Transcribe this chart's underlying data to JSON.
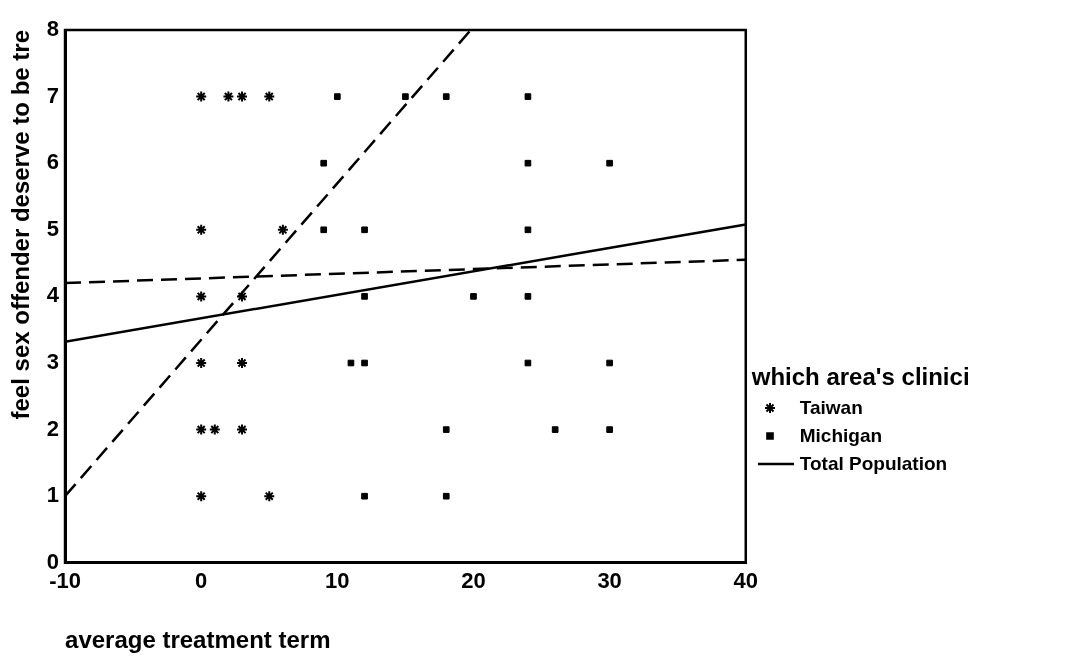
{
  "chart_data": {
    "type": "scatter",
    "xlabel": "average treatment term",
    "ylabel": "feel sex offender deserve to be tre",
    "legend_title": "which area's clinici",
    "xlim": [
      -10,
      40
    ],
    "xticks": [
      -10,
      0,
      10,
      20,
      30,
      40
    ],
    "ylim": [
      0,
      8
    ],
    "yticks": [
      0,
      1,
      2,
      3,
      4,
      5,
      6,
      7,
      8
    ],
    "grid": false,
    "legend": "right",
    "series": [
      {
        "name": "Taiwan",
        "marker": "cross",
        "color": "#000000",
        "x": [
          0,
          2,
          3,
          5,
          0,
          6,
          0,
          3,
          0,
          3,
          0,
          1,
          3,
          0,
          5
        ],
        "values": [
          7,
          7,
          7,
          7,
          5,
          5,
          4,
          4,
          3,
          3,
          2,
          2,
          2,
          1,
          1
        ]
      },
      {
        "name": "Michigan",
        "marker": "square",
        "color": "#000000",
        "x": [
          10,
          15,
          18,
          24,
          9,
          24,
          30,
          9,
          12,
          24,
          12,
          20,
          24,
          11,
          12,
          24,
          30,
          18,
          26,
          30,
          12,
          18
        ],
        "values": [
          7,
          7,
          7,
          7,
          6,
          6,
          6,
          5,
          5,
          5,
          4,
          4,
          4,
          3,
          3,
          3,
          3,
          2,
          2,
          2,
          1,
          1
        ]
      },
      {
        "type": "line",
        "marker": "none",
        "line_style": "dashed",
        "color": "#000000",
        "x": [
          -10,
          19.8
        ],
        "values": [
          1,
          8
        ]
      },
      {
        "type": "line",
        "marker": "none",
        "line_style": "dashed",
        "color": "#000000",
        "x": [
          -10,
          40
        ],
        "values": [
          4.2,
          4.55
        ]
      },
      {
        "name": "Total Population",
        "type": "line",
        "marker": "none",
        "line_style": "solid",
        "color": "#000000",
        "x": [
          -10,
          40
        ],
        "values": [
          3.32,
          5.08
        ]
      }
    ]
  }
}
